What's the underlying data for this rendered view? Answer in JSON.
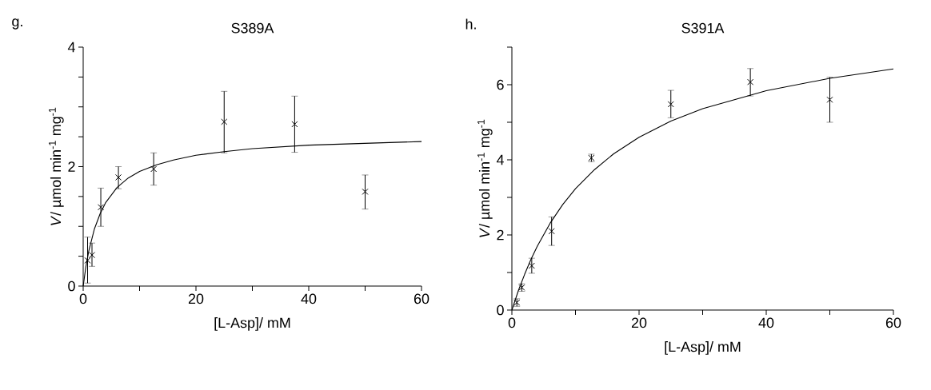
{
  "chart_data": [
    {
      "type": "scatter",
      "title": "S389A",
      "annotations": [
        "g."
      ],
      "xlabel": "[L-Asp]/ mM",
      "ylabel": "*V*/ µmol min$^{-1}$ mg$^{-1}$",
      "xlim": [
        0,
        60
      ],
      "ylim": [
        0,
        4
      ],
      "xticks": [
        0,
        {
          "value": 10,
          "label": null
        },
        20,
        {
          "value": 30,
          "label": null
        },
        40,
        {
          "value": 50,
          "label": null
        },
        60
      ],
      "yticks": [
        0,
        {
          "value": 0.5,
          "label": null
        },
        {
          "value": 1,
          "label": null
        },
        {
          "value": 1.5,
          "label": null
        },
        2,
        {
          "value": 2.5,
          "label": null
        },
        {
          "value": 3,
          "label": null
        },
        {
          "value": 3.5,
          "label": null
        },
        4
      ],
      "series": [
        {
          "color": "#000000",
          "marker": "cross",
          "x": [
            0.78,
            1.56,
            3.125,
            6.25,
            12.5,
            25,
            37.5,
            50
          ],
          "values": [
            0.43,
            0.52,
            1.32,
            1.82,
            1.96,
            2.75,
            2.71,
            1.58
          ],
          "errors": [
            [
              0.05,
              0.82
            ],
            [
              0.33,
              0.72
            ],
            [
              1.0,
              1.64
            ],
            [
              1.63,
              2.0
            ],
            [
              1.69,
              2.23
            ],
            [
              2.23,
              3.26
            ],
            [
              2.24,
              3.18
            ],
            [
              1.29,
              1.86
            ]
          ]
        },
        {
          "type": "line",
          "color": "#000000",
          "line_style": "solid",
          "x": [
            0,
            0.5,
            1,
            2,
            3,
            4,
            6,
            8,
            10,
            13,
            16,
            20,
            25,
            30,
            40,
            50,
            60
          ],
          "values": [
            0,
            0.34,
            0.59,
            0.96,
            1.21,
            1.4,
            1.65,
            1.81,
            1.92,
            2.03,
            2.11,
            2.19,
            2.25,
            2.3,
            2.36,
            2.39,
            2.42
          ]
        }
      ]
    },
    {
      "type": "scatter",
      "title": "S391A",
      "annotations": [
        "h."
      ],
      "xlabel": "[L-Asp]/ mM",
      "ylabel": "*V*/ µmol min$^{-1}$ mg$^{-1}$",
      "xlim": [
        0,
        60
      ],
      "ylim": [
        0,
        7
      ],
      "xticks": [
        0,
        {
          "value": 10,
          "label": null
        },
        20,
        {
          "value": 30,
          "label": null
        },
        40,
        {
          "value": 50,
          "label": null
        },
        60
      ],
      "yticks": [
        0,
        {
          "value": 1,
          "label": null
        },
        2,
        {
          "value": 3,
          "label": null
        },
        4,
        {
          "value": 5,
          "label": null
        },
        6,
        {
          "value": 7,
          "label": null
        }
      ],
      "series": [
        {
          "color": "#000000",
          "marker": "cross",
          "x": [
            0.78,
            1.56,
            3.125,
            6.25,
            12.5,
            25,
            37.5,
            50
          ],
          "values": [
            0.2,
            0.6,
            1.18,
            2.1,
            4.05,
            5.48,
            6.07,
            5.6
          ],
          "errors": [
            [
              0.1,
              0.3
            ],
            [
              0.5,
              0.7
            ],
            [
              0.98,
              1.38
            ],
            [
              1.72,
              2.48
            ],
            [
              3.95,
              4.15
            ],
            [
              5.12,
              5.85
            ],
            [
              5.7,
              6.43
            ],
            [
              5.0,
              6.2
            ]
          ]
        },
        {
          "type": "line",
          "color": "#000000",
          "line_style": "solid",
          "x": [
            0,
            1,
            2,
            3,
            4,
            6,
            8,
            10,
            13,
            16,
            20,
            25,
            30,
            40,
            50,
            60
          ],
          "values": [
            0,
            0.51,
            0.95,
            1.35,
            1.7,
            2.31,
            2.81,
            3.23,
            3.74,
            4.16,
            4.6,
            5.03,
            5.36,
            5.84,
            6.17,
            6.42
          ]
        }
      ]
    }
  ]
}
